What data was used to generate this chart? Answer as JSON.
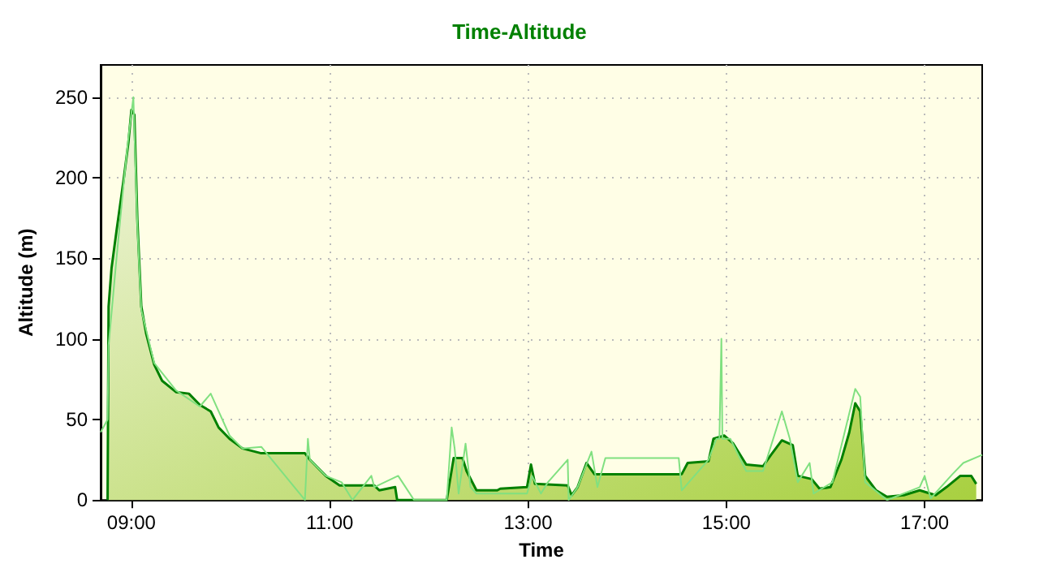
{
  "chart_data": {
    "type": "area",
    "title": "Time-Altitude",
    "xlabel": "Time",
    "ylabel": "Altitude (m)",
    "xlim": [
      8.69,
      17.58
    ],
    "ylim": [
      0,
      270
    ],
    "xticks": [
      {
        "value": 9,
        "label": "09:00"
      },
      {
        "value": 11,
        "label": "11:00"
      },
      {
        "value": 13,
        "label": "13:00"
      },
      {
        "value": 15,
        "label": "15:00"
      },
      {
        "value": 17,
        "label": "17:00"
      }
    ],
    "yticks": [
      0,
      50,
      100,
      150,
      200,
      250
    ],
    "grid": true,
    "series": [
      {
        "type": "line",
        "color": "#80e080",
        "x": [
          8.69,
          8.76,
          8.77,
          8.85,
          8.92,
          8.97,
          9.02,
          9.06,
          9.1,
          9.23,
          9.45,
          9.69,
          9.8,
          9.99,
          10.12,
          10.31,
          10.75,
          10.78,
          10.8,
          10.96,
          11.12,
          11.23,
          11.42,
          11.45,
          11.69,
          11.85,
          12.18,
          12.23,
          12.26,
          12.3,
          12.37,
          12.42,
          12.48,
          12.99,
          13.04,
          13.13,
          13.2,
          13.4,
          13.41,
          13.5,
          13.64,
          13.7,
          13.78,
          14.52,
          14.55,
          14.82,
          14.9,
          14.93,
          14.95,
          14.96,
          15.04,
          15.2,
          15.37,
          15.56,
          15.64,
          15.72,
          15.84,
          15.88,
          16.07,
          16.3,
          16.35,
          16.4,
          16.62,
          16.95,
          17.0,
          17.06,
          17.28,
          17.39,
          17.58
        ],
        "values": [
          42,
          50,
          96,
          150,
          195,
          225,
          250,
          170,
          118,
          85,
          68,
          58,
          66,
          40,
          32,
          33,
          0,
          38,
          25,
          15,
          11,
          0,
          15,
          8,
          15,
          0,
          0,
          45,
          32,
          4,
          35,
          8,
          4,
          4,
          15,
          4,
          11,
          25,
          0,
          8,
          30,
          8,
          26,
          26,
          6,
          25,
          38,
          38,
          100,
          38,
          38,
          18,
          18,
          55,
          38,
          11,
          23,
          4,
          11,
          69,
          64,
          11,
          0,
          8,
          15,
          1,
          16,
          23,
          28
        ]
      },
      {
        "color": "#008000",
        "x": [
          8.76,
          8.77,
          8.8,
          8.85,
          8.92,
          8.97,
          9.0,
          9.03,
          9.06,
          9.1,
          9.15,
          9.23,
          9.31,
          9.45,
          9.58,
          9.69,
          9.8,
          9.88,
          9.99,
          10.12,
          10.31,
          10.75,
          10.8,
          10.96,
          11.1,
          11.45,
          11.5,
          11.66,
          11.68,
          12.18,
          12.25,
          12.34,
          12.38,
          12.48,
          12.69,
          12.72,
          12.99,
          13.03,
          13.07,
          13.4,
          13.44,
          13.5,
          13.59,
          13.67,
          14.55,
          14.61,
          14.82,
          14.87,
          14.98,
          15.07,
          15.2,
          15.37,
          15.45,
          15.56,
          15.67,
          15.72,
          15.86,
          15.94,
          16.05,
          16.16,
          16.24,
          16.3,
          16.35,
          16.4,
          16.51,
          16.62,
          16.79,
          16.95,
          17.11,
          17.22,
          17.28,
          17.36,
          17.47,
          17.52
        ],
        "values": [
          0,
          120,
          144,
          167,
          198,
          222,
          242,
          239,
          174,
          120,
          103,
          84,
          74,
          67,
          66,
          59,
          55,
          45,
          38,
          32,
          29,
          29,
          25,
          15,
          9,
          9,
          6,
          8,
          0,
          0,
          26,
          26,
          18,
          6,
          6,
          7,
          8,
          22,
          10,
          9,
          3,
          8,
          23,
          16,
          16,
          23,
          24,
          38,
          40,
          35,
          22,
          21,
          28,
          37,
          34,
          15,
          13,
          7,
          8,
          25,
          42,
          60,
          55,
          15,
          6,
          2,
          3,
          6,
          3,
          8,
          11,
          15,
          15,
          10
        ]
      }
    ]
  }
}
